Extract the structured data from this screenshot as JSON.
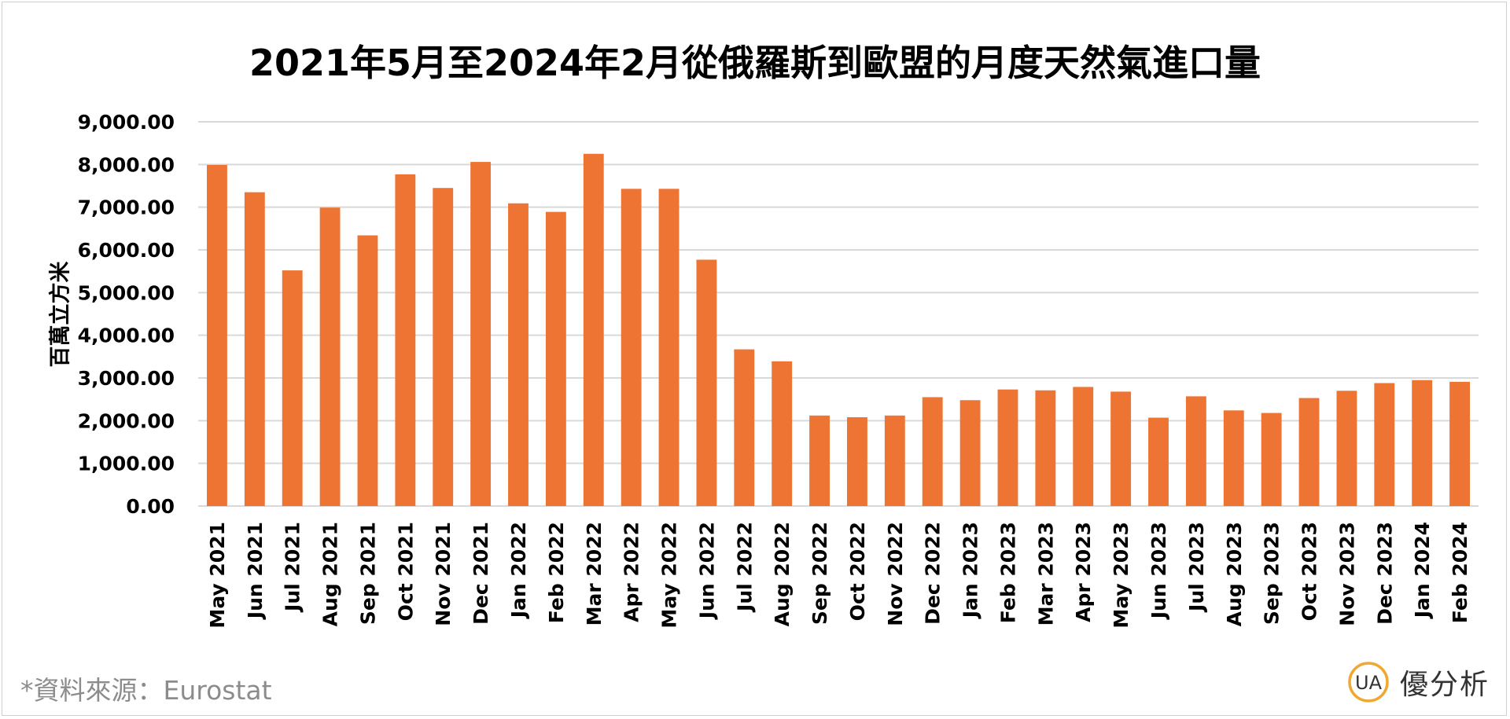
{
  "chart_data": {
    "type": "bar",
    "title": "2021年5月至2024年2月從俄羅斯到歐盟的月度天然氣進口量",
    "ylabel": "百萬立方米",
    "xlabel": "",
    "ylim": [
      0,
      9000
    ],
    "yticks": [
      "0.00",
      "1,000.00",
      "2,000.00",
      "3,000.00",
      "4,000.00",
      "5,000.00",
      "6,000.00",
      "7,000.00",
      "8,000.00",
      "9,000.00"
    ],
    "grid": true,
    "legend": "none",
    "bar_color": "#ED7433",
    "categories": [
      "May 2021",
      "Jun 2021",
      "Jul 2021",
      "Aug 2021",
      "Sep 2021",
      "Oct 2021",
      "Nov 2021",
      "Dec 2021",
      "Jan 2022",
      "Feb 2022",
      "Mar 2022",
      "Apr 2022",
      "May 2022",
      "Jun 2022",
      "Jul 2022",
      "Aug 2022",
      "Sep 2022",
      "Oct 2022",
      "Nov 2022",
      "Dec 2022",
      "Jan 2023",
      "Feb 2023",
      "Mar 2023",
      "Apr 2023",
      "May 2023",
      "Jun 2023",
      "Jul 2023",
      "Aug 2023",
      "Sep 2023",
      "Oct 2023",
      "Nov 2023",
      "Dec 2023",
      "Jan 2024",
      "Feb 2024"
    ],
    "values": [
      7990,
      7350,
      5520,
      6990,
      6340,
      7770,
      7450,
      8060,
      7090,
      6890,
      8250,
      7430,
      7430,
      5770,
      3670,
      3390,
      2120,
      2080,
      2120,
      2550,
      2480,
      2730,
      2710,
      2790,
      2680,
      2070,
      2570,
      2240,
      2180,
      2530,
      2700,
      2880,
      2950,
      2910
    ]
  },
  "footer": {
    "source": "*資料來源：Eurostat",
    "brand_name": "優分析",
    "brand_logo_text": "UA",
    "brand_color": "#F0A830"
  }
}
